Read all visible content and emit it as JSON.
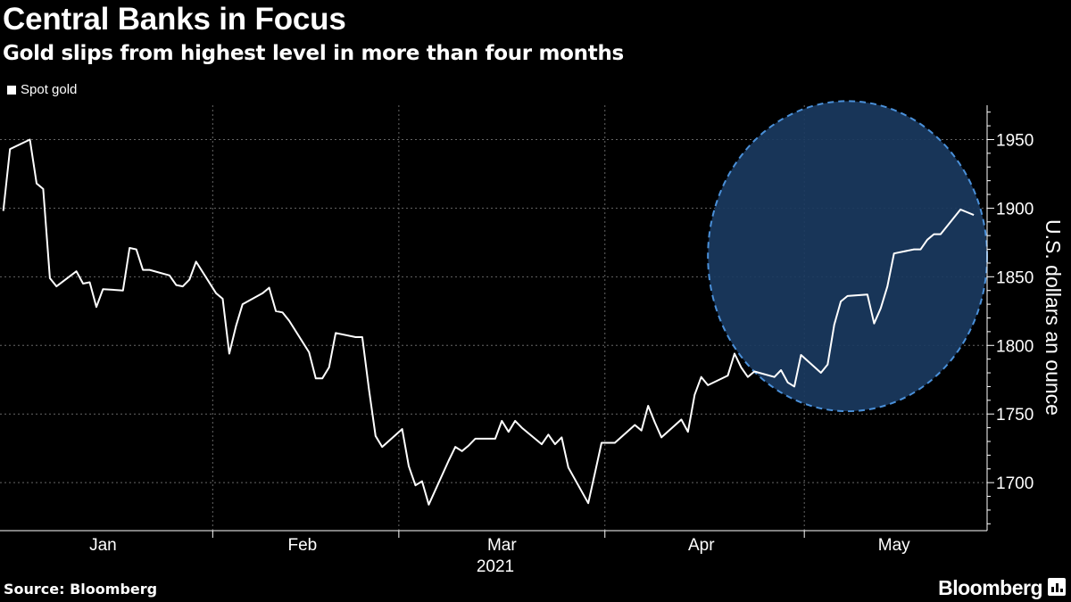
{
  "header": {
    "title": "Central Banks in Focus",
    "subtitle": "Gold slips from highest level in more than four months"
  },
  "footer": {
    "source": "Source: Bloomberg",
    "brand": "Bloomberg"
  },
  "colors": {
    "background": "#000000",
    "line": "#ffffff",
    "highlight_fill": "#1a3a60",
    "highlight_stroke": "#4a90d9",
    "grid": "#666666"
  },
  "chart_data": {
    "type": "line",
    "ylabel": "U.S. dollars an ounce",
    "year_label": "2021",
    "ylim": [
      1665,
      1975
    ],
    "yticks": [
      1700,
      1750,
      1800,
      1850,
      1900,
      1950
    ],
    "x_months": [
      "Jan",
      "Feb",
      "Mar",
      "Apr",
      "May"
    ],
    "grid": "dotted vertical at month boundaries, horizontal at y ticks",
    "legend_position": "top-left",
    "series": [
      {
        "name": "Spot gold",
        "x": [
          "2020-12-31",
          "2021-01-01",
          "2021-01-04",
          "2021-01-05",
          "2021-01-06",
          "2021-01-07",
          "2021-01-08",
          "2021-01-11",
          "2021-01-12",
          "2021-01-13",
          "2021-01-14",
          "2021-01-15",
          "2021-01-18",
          "2021-01-19",
          "2021-01-20",
          "2021-01-21",
          "2021-01-22",
          "2021-01-25",
          "2021-01-26",
          "2021-01-27",
          "2021-01-28",
          "2021-01-29",
          "2021-02-01",
          "2021-02-02",
          "2021-02-03",
          "2021-02-04",
          "2021-02-05",
          "2021-02-08",
          "2021-02-09",
          "2021-02-10",
          "2021-02-11",
          "2021-02-12",
          "2021-02-15",
          "2021-02-16",
          "2021-02-17",
          "2021-02-18",
          "2021-02-19",
          "2021-02-22",
          "2021-02-23",
          "2021-02-24",
          "2021-02-25",
          "2021-02-26",
          "2021-03-01",
          "2021-03-02",
          "2021-03-03",
          "2021-03-04",
          "2021-03-05",
          "2021-03-08",
          "2021-03-09",
          "2021-03-10",
          "2021-03-11",
          "2021-03-12",
          "2021-03-15",
          "2021-03-16",
          "2021-03-17",
          "2021-03-18",
          "2021-03-19",
          "2021-03-22",
          "2021-03-23",
          "2021-03-24",
          "2021-03-25",
          "2021-03-26",
          "2021-03-29",
          "2021-03-30",
          "2021-03-31",
          "2021-04-01",
          "2021-04-02",
          "2021-04-05",
          "2021-04-06",
          "2021-04-07",
          "2021-04-08",
          "2021-04-09",
          "2021-04-12",
          "2021-04-13",
          "2021-04-14",
          "2021-04-15",
          "2021-04-16",
          "2021-04-19",
          "2021-04-20",
          "2021-04-21",
          "2021-04-22",
          "2021-04-23",
          "2021-04-26",
          "2021-04-27",
          "2021-04-28",
          "2021-04-29",
          "2021-04-30",
          "2021-05-03",
          "2021-05-04",
          "2021-05-05",
          "2021-05-06",
          "2021-05-07",
          "2021-05-10",
          "2021-05-11",
          "2021-05-12",
          "2021-05-13",
          "2021-05-14",
          "2021-05-17",
          "2021-05-18",
          "2021-05-19",
          "2021-05-20",
          "2021-05-21",
          "2021-05-24",
          "2021-05-25",
          "2021-05-26"
        ],
        "values": [
          1898,
          1943,
          1950,
          1918,
          1914,
          1849,
          1843,
          1854,
          1845,
          1846,
          1828,
          1841,
          1840,
          1871,
          1870,
          1855,
          1855,
          1851,
          1844,
          1843,
          1848,
          1861,
          1838,
          1834,
          1794,
          1814,
          1830,
          1838,
          1842,
          1825,
          1824,
          1818,
          1795,
          1776,
          1776,
          1784,
          1809,
          1806,
          1806,
          1768,
          1734,
          1726,
          1739,
          1712,
          1698,
          1701,
          1684,
          1716,
          1726,
          1723,
          1727,
          1732,
          1732,
          1745,
          1737,
          1745,
          1740,
          1728,
          1735,
          1728,
          1733,
          1711,
          1685,
          1707,
          1729,
          1729,
          1729,
          1742,
          1738,
          1756,
          1744,
          1733,
          1746,
          1737,
          1764,
          1777,
          1771,
          1778,
          1794,
          1784,
          1777,
          1781,
          1777,
          1782,
          1773,
          1770,
          1793,
          1780,
          1786,
          1815,
          1832,
          1836,
          1837,
          1816,
          1827,
          1843,
          1867,
          1870,
          1870,
          1877,
          1881,
          1881,
          1899,
          1897,
          1895
        ]
      }
    ],
    "highlight": {
      "shape": "ellipse",
      "style": "dashed outline, translucent blue fill",
      "x_range": [
        "2021-04-16",
        "2021-05-28"
      ],
      "y_range": [
        1752,
        1978
      ]
    }
  }
}
